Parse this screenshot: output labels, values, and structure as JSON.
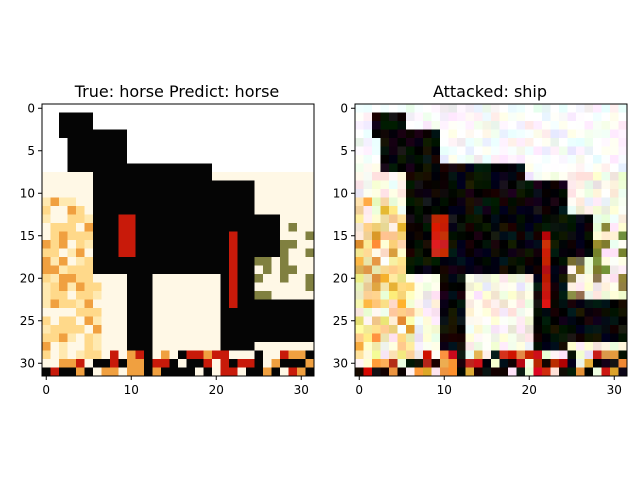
{
  "panels": [
    {
      "title": "True: horse  Predict: horse",
      "x_ticks": [
        "0",
        "10",
        "20",
        "30"
      ],
      "y_ticks": [
        "0",
        "5",
        "10",
        "15",
        "20",
        "25",
        "30"
      ],
      "image_size": [
        32,
        32
      ],
      "image_description_key": "clean"
    },
    {
      "title": "Attacked: ship",
      "x_ticks": [
        "0",
        "10",
        "20",
        "30"
      ],
      "y_ticks": [
        "0",
        "5",
        "10",
        "15",
        "20",
        "25",
        "30"
      ],
      "image_size": [
        32,
        32
      ],
      "image_description_key": "adversarial"
    }
  ],
  "colors": {
    "horse_dark": "#050505",
    "red_mane": "#c81a0a",
    "bg_light": "#fff8e6",
    "sand": "#ffd98a",
    "orange": "#f0a040",
    "grass": "#808040"
  }
}
